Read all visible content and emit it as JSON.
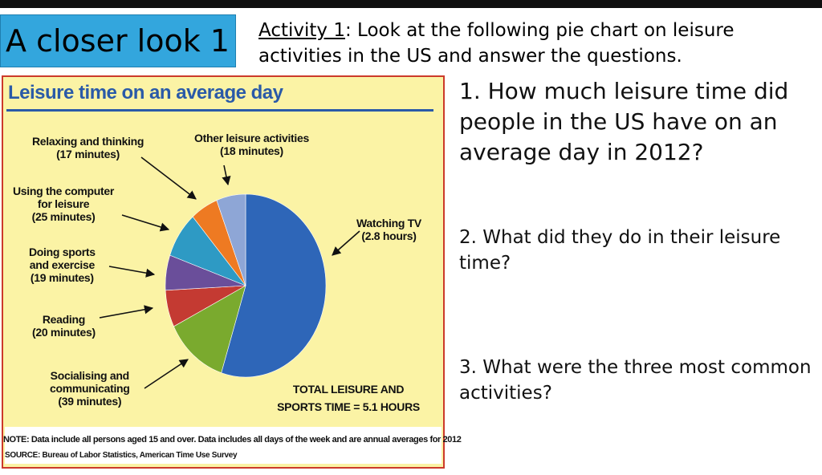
{
  "slide": {
    "title": "A closer look 1",
    "activity_label": "Activity 1",
    "activity_text": ": Look at the following pie chart on leisure activities in the US and answer the questions.",
    "questions": [
      "1. How much leisure time did people in the US have on an average day in 2012?",
      "2. What did they do in their leisure time?",
      "3. What were the three most common activities?"
    ]
  },
  "colors": {
    "title_box": "#33a6dd",
    "chart_bg": "#fbf3a5",
    "frame": "#cc3a2a",
    "chart_title": "#2a5aa8"
  },
  "chart_data": {
    "type": "pie",
    "title": "Leisure time on an average day",
    "slices": [
      {
        "name": "Watching TV",
        "display": "2.8 hours",
        "minutes": 168,
        "color": "#2e66b8"
      },
      {
        "name": "Socialising and communicating",
        "display": "39 minutes",
        "minutes": 39,
        "color": "#7aaa2e"
      },
      {
        "name": "Reading",
        "display": "20 minutes",
        "minutes": 20,
        "color": "#c43a32"
      },
      {
        "name": "Doing sports and exercise",
        "display": "19 minutes",
        "minutes": 19,
        "color": "#6a4e9a"
      },
      {
        "name": "Using the computer for leisure",
        "display": "25 minutes",
        "minutes": 25,
        "color": "#2e9ac4"
      },
      {
        "name": "Relaxing and thinking",
        "display": "17 minutes",
        "minutes": 17,
        "color": "#ee7a22"
      },
      {
        "name": "Other leisure activities",
        "display": "18 minutes",
        "minutes": 18,
        "color": "#8ea6d6"
      }
    ],
    "labels": {
      "relaxing_line1": "Relaxing and thinking",
      "relaxing_line2": "(17 minutes)",
      "other_line1": "Other leisure activities",
      "other_line2": "(18 minutes)",
      "computer_line1": "Using the computer",
      "computer_line2": "for leisure",
      "computer_line3": "(25 minutes)",
      "sports_line1": "Doing sports",
      "sports_line2": "and exercise",
      "sports_line3": "(19 minutes)",
      "reading_line1": "Reading",
      "reading_line2": "(20 minutes)",
      "social_line1": "Socialising and",
      "social_line2": "communicating",
      "social_line3": "(39 minutes)",
      "tv_line1": "Watching TV",
      "tv_line2": "(2.8 hours)"
    },
    "total_line1": "TOTAL LEISURE AND",
    "total_line2": "SPORTS TIME = 5.1 HOURS",
    "note": "NOTE: Data include all persons aged 15 and over. Data includes all days of the week and are annual averages for 2012",
    "source": "SOURCE: Bureau of Labor Statistics, American Time Use Survey"
  }
}
